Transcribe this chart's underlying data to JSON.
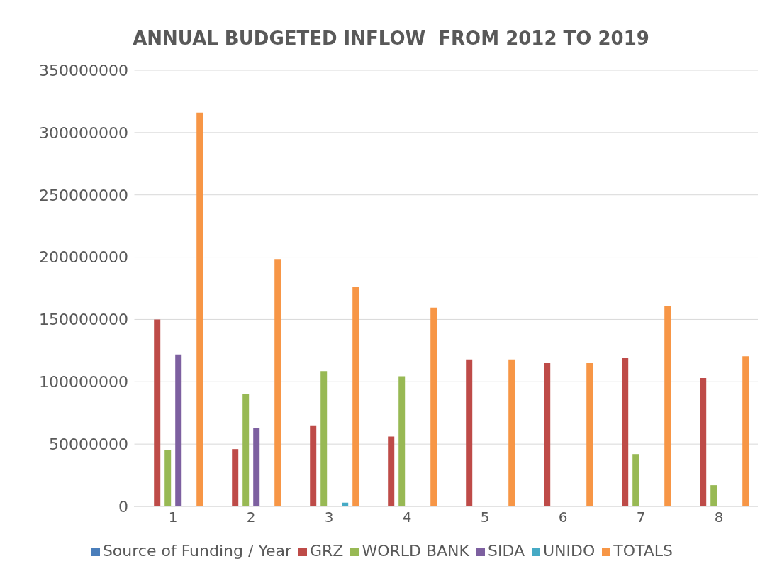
{
  "chart_data": {
    "type": "bar",
    "title": "ANNUAL BUDGETED INFLOW  FROM 2012 TO 2019",
    "categories": [
      "1",
      "2",
      "3",
      "4",
      "5",
      "6",
      "7",
      "8"
    ],
    "series": [
      {
        "name": "Source of Funding / Year",
        "color": "#4a7ebb",
        "values": [
          null,
          null,
          null,
          null,
          null,
          null,
          null,
          null
        ]
      },
      {
        "name": "GRZ",
        "color": "#be4b48",
        "values": [
          150000000,
          46000000,
          65000000,
          56000000,
          118000000,
          115000000,
          119000000,
          103000000
        ]
      },
      {
        "name": "WORLD BANK",
        "color": "#98b954",
        "values": [
          45000000,
          90000000,
          108500000,
          104500000,
          null,
          null,
          42000000,
          17000000
        ]
      },
      {
        "name": "SIDA",
        "color": "#7d60a0",
        "values": [
          122000000,
          63000000,
          null,
          null,
          null,
          null,
          null,
          null
        ]
      },
      {
        "name": "UNIDO",
        "color": "#46aac5",
        "values": [
          null,
          null,
          3000000,
          null,
          null,
          null,
          null,
          null
        ]
      },
      {
        "name": "TOTALS",
        "color": "#f79646",
        "values": [
          316000000,
          198500000,
          176000000,
          159500000,
          118000000,
          115000000,
          160500000,
          120500000
        ]
      }
    ],
    "ylim": [
      0,
      350000000
    ],
    "yticks": [
      0,
      50000000,
      100000000,
      150000000,
      200000000,
      250000000,
      300000000,
      350000000
    ],
    "grid": "y",
    "legend": "bottom"
  }
}
